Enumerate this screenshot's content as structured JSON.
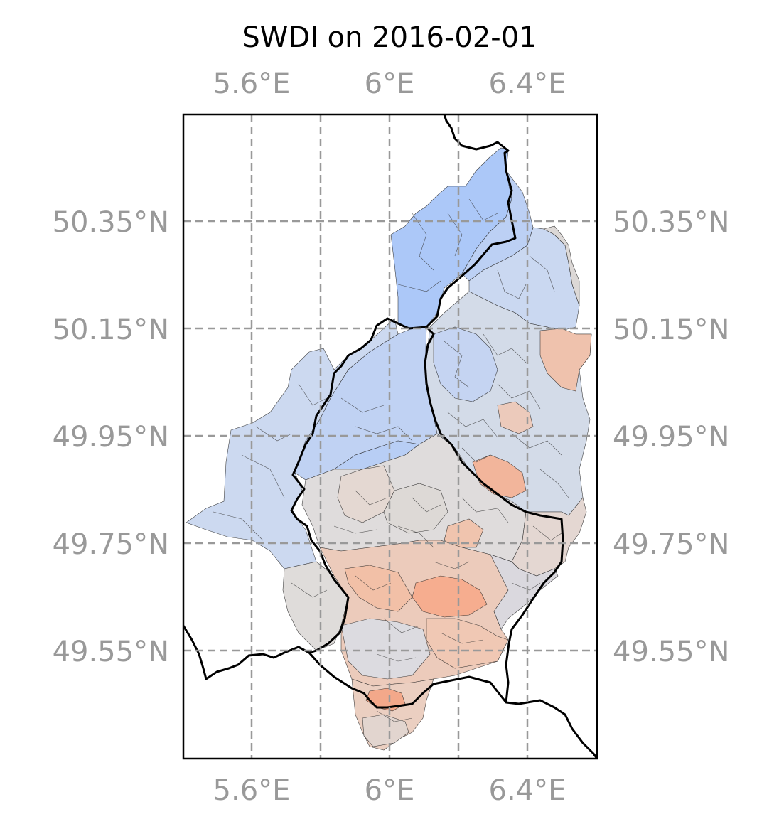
{
  "title": "SWDI on 2016-02-01",
  "axes": {
    "x_ticks": [
      "5.6°E",
      "6°E",
      "6.4°E"
    ],
    "y_ticks": [
      "50.35°N",
      "50.15°N",
      "49.95°N",
      "49.75°N",
      "49.55°N"
    ]
  },
  "map": {
    "lon_range": [
      5.43,
      6.63
    ],
    "lat_range": [
      49.35,
      50.55
    ],
    "grid_lons": [
      5.6,
      5.8,
      6.0,
      6.2,
      6.4
    ],
    "grid_lats": [
      50.35,
      50.15,
      49.95,
      49.75,
      49.55
    ],
    "colormap": "coolwarm",
    "colors": {
      "strong_blue": "#a9c5f6",
      "blue": "#bdd2f6",
      "light_blue": "#ccd9ee",
      "grey_blue": "#d8dde6",
      "neutral": "#e0dcd9",
      "light_red": "#ecd3c5",
      "salmon": "#f2c1a9",
      "red": "#f5a98a"
    }
  }
}
